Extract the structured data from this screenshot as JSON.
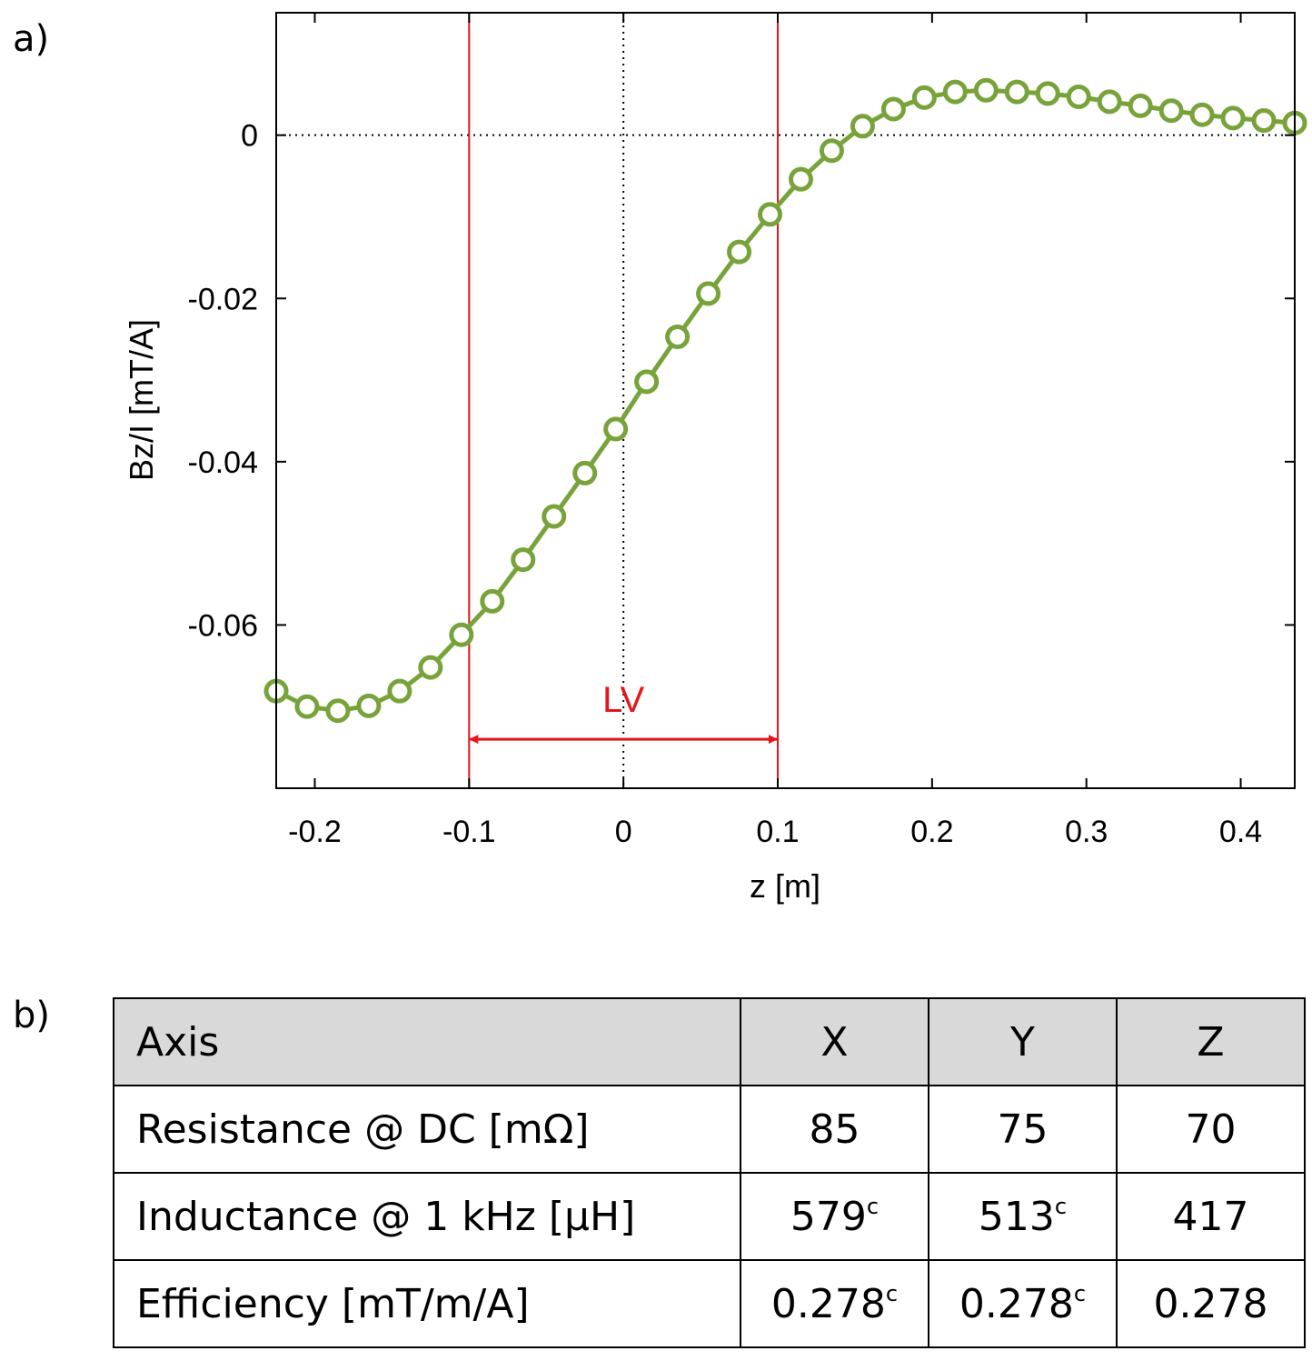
{
  "panel_labels": {
    "a": "a)",
    "b": "b)"
  },
  "chart_data": {
    "type": "line",
    "title": "",
    "xlabel": "z [m]",
    "ylabel": "Bz/I [mT/A]",
    "xlim": [
      -0.225,
      0.435
    ],
    "ylim": [
      -0.08,
      0.015
    ],
    "xticks": [
      -0.2,
      -0.1,
      0,
      0.1,
      0.2,
      0.3,
      0.4
    ],
    "xtick_labels": [
      "-0.2",
      "-0.1",
      "0",
      "0.1",
      "0.2",
      "0.3",
      "0.4"
    ],
    "yticks": [
      -0.06,
      -0.04,
      -0.02,
      0
    ],
    "ytick_labels": [
      "-0.06",
      "-0.04",
      "-0.02",
      "0"
    ],
    "grid": false,
    "series": [
      {
        "name": "Bz/I",
        "color": "#77a33a",
        "marker": "circle-open",
        "x": [
          -0.225,
          -0.205,
          -0.185,
          -0.165,
          -0.145,
          -0.125,
          -0.105,
          -0.085,
          -0.065,
          -0.045,
          -0.025,
          -0.005,
          0.015,
          0.035,
          0.055,
          0.075,
          0.095,
          0.115,
          0.135,
          0.155,
          0.175,
          0.195,
          0.215,
          0.235,
          0.255,
          0.275,
          0.295,
          0.315,
          0.335,
          0.355,
          0.375,
          0.395,
          0.415,
          0.435
        ],
        "y": [
          -0.0681,
          -0.07,
          -0.0705,
          -0.0699,
          -0.0681,
          -0.0652,
          -0.0612,
          -0.0571,
          -0.052,
          -0.0467,
          -0.0414,
          -0.036,
          -0.0302,
          -0.0247,
          -0.0194,
          -0.0143,
          -0.0097,
          -0.0054,
          -0.0019,
          0.0011,
          0.0032,
          0.0046,
          0.0053,
          0.0055,
          0.0053,
          0.0051,
          0.0047,
          0.0041,
          0.0036,
          0.003,
          0.0025,
          0.0021,
          0.0018,
          0.0015
        ]
      }
    ],
    "reference_lines": {
      "x0": 0,
      "y0": 0,
      "style": "dotted"
    },
    "vertical_markers": {
      "x": [
        -0.1,
        0.1
      ],
      "color": "#e8141c"
    },
    "annotation": {
      "text": "LV",
      "from": -0.1,
      "to": 0.1,
      "y": -0.074,
      "color": "#e8141c"
    }
  },
  "table": {
    "header": [
      "Axis",
      "X",
      "Y",
      "Z"
    ],
    "rows": [
      {
        "label": "Resistance @ DC [mΩ]",
        "cells": [
          {
            "v": "85",
            "sup": ""
          },
          {
            "v": "75",
            "sup": ""
          },
          {
            "v": "70",
            "sup": ""
          }
        ]
      },
      {
        "label": "Inductance @ 1 kHz [µH]",
        "cells": [
          {
            "v": "579",
            "sup": "c"
          },
          {
            "v": "513",
            "sup": "c"
          },
          {
            "v": "417",
            "sup": ""
          }
        ]
      },
      {
        "label": "Efficiency [mT/m/A]",
        "cells": [
          {
            "v": "0.278",
            "sup": "c"
          },
          {
            "v": "0.278",
            "sup": "c"
          },
          {
            "v": "0.278",
            "sup": ""
          }
        ]
      }
    ]
  }
}
